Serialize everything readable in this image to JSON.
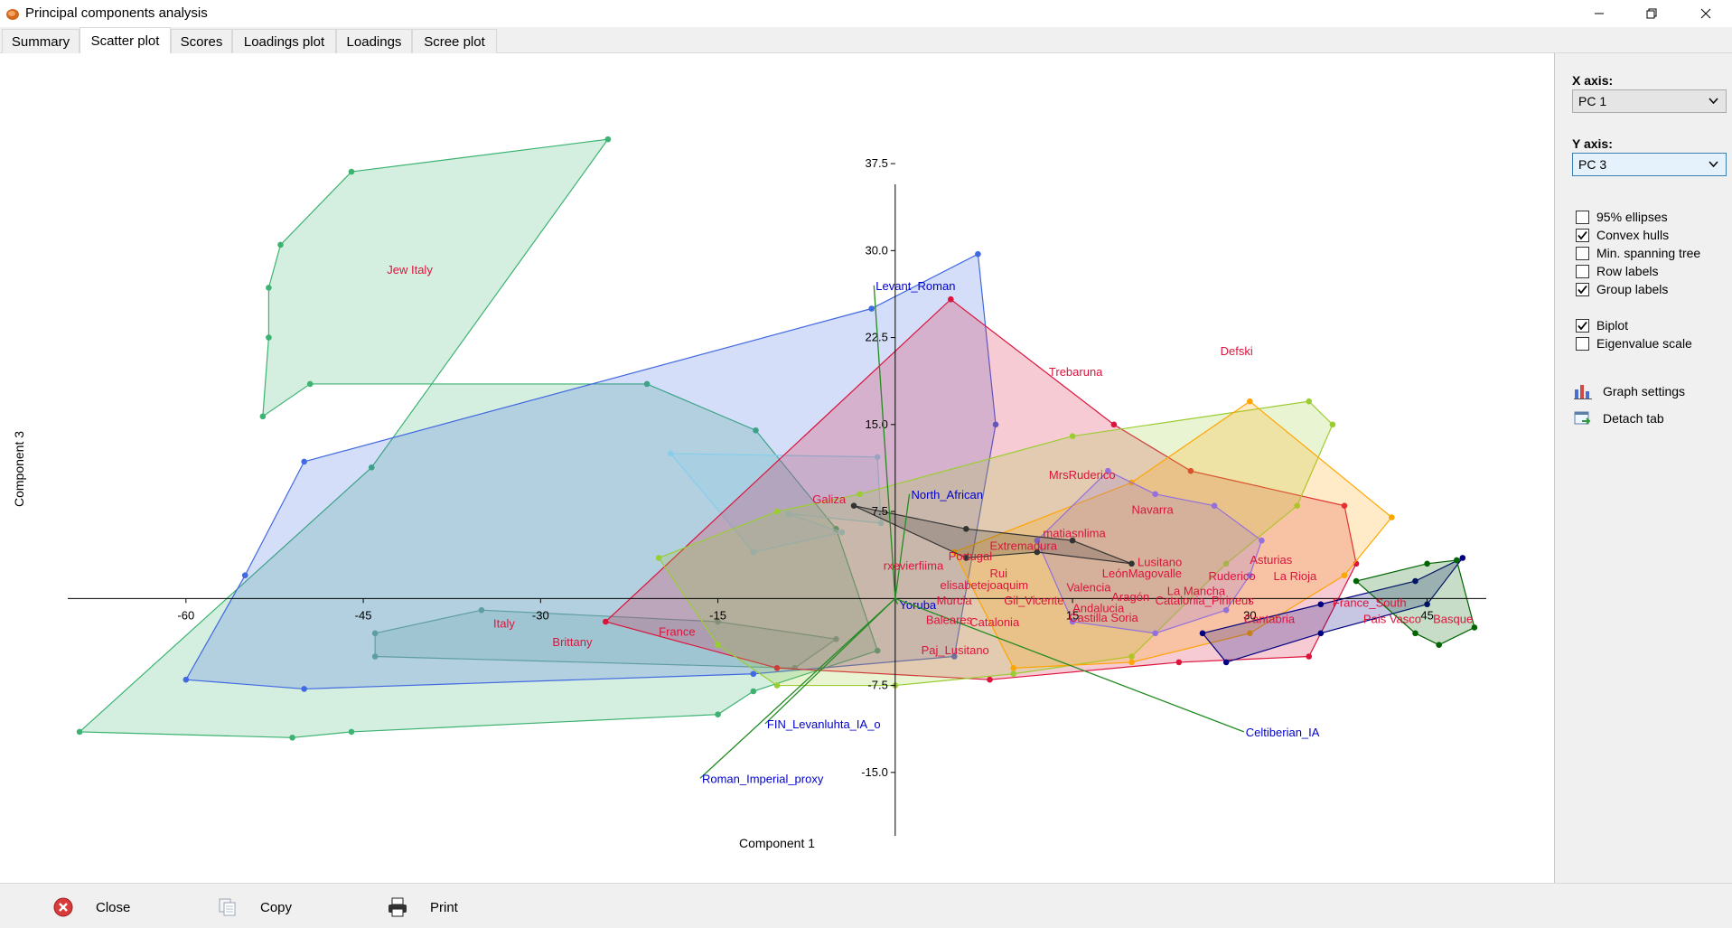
{
  "window": {
    "title": "Principal components analysis",
    "controls": [
      "minimize",
      "maximize",
      "close"
    ]
  },
  "tabs": [
    {
      "label": "Summary",
      "active": false
    },
    {
      "label": "Scatter plot",
      "active": true
    },
    {
      "label": "Scores",
      "active": false
    },
    {
      "label": "Loadings plot",
      "active": false
    },
    {
      "label": "Loadings",
      "active": false
    },
    {
      "label": "Scree plot",
      "active": false
    }
  ],
  "side_panel": {
    "x_axis_label": "X axis:",
    "x_axis_value": "PC 1",
    "y_axis_label": "Y axis:",
    "y_axis_value": "PC 3",
    "checkboxes": [
      {
        "label": "95% ellipses",
        "checked": false
      },
      {
        "label": "Convex hulls",
        "checked": true
      },
      {
        "label": "Min. spanning tree",
        "checked": false
      },
      {
        "label": "Row labels",
        "checked": false
      },
      {
        "label": "Group labels",
        "checked": true
      },
      {
        "label": "Biplot",
        "checked": true
      },
      {
        "label": "Eigenvalue scale",
        "checked": false
      }
    ],
    "actions": [
      {
        "label": "Graph settings",
        "icon": "bar-chart-icon"
      },
      {
        "label": "Detach tab",
        "icon": "detach-window-icon"
      }
    ]
  },
  "bottom_bar": {
    "close_label": "Close",
    "copy_label": "Copy",
    "print_label": "Print"
  },
  "chart_data": {
    "type": "scatter",
    "xlabel": "Component 1",
    "ylabel": "Component 3",
    "xlim": [
      -70,
      50
    ],
    "ylim": [
      -20,
      40
    ],
    "x_ticks": [
      -60,
      -45,
      -30,
      -15,
      15,
      30,
      45
    ],
    "y_ticks": [
      -15.0,
      -7.5,
      7.5,
      15.0,
      22.5,
      30.0,
      37.5
    ],
    "x_tick_labels": [
      "-60",
      "-45",
      "-30",
      "-15",
      "15",
      "30",
      "45"
    ],
    "y_tick_labels": [
      "-15.0",
      "-7.5",
      "7.5",
      "15.0",
      "22.5",
      "30.0",
      "37.5"
    ],
    "hulls": [
      {
        "color": "#3cb371",
        "points": [
          [
            -69,
            -11.5
          ],
          [
            -44.3,
            11.3
          ],
          [
            -24.3,
            39.6
          ],
          [
            -46,
            36.8
          ],
          [
            -52,
            30.5
          ],
          [
            -53,
            26.8
          ],
          [
            -53,
            22.5
          ],
          [
            -53.5,
            15.7
          ],
          [
            -49.5,
            18.5
          ],
          [
            -21,
            18.5
          ],
          [
            -11.8,
            14.5
          ],
          [
            -5,
            6
          ],
          [
            -1.5,
            -4.5
          ],
          [
            -12,
            -8
          ],
          [
            -15,
            -10
          ],
          [
            -46,
            -11.5
          ],
          [
            -51,
            -12
          ]
        ]
      },
      {
        "color": "#4169e1",
        "points": [
          [
            -60,
            -7
          ],
          [
            -50,
            -7.8
          ],
          [
            -12,
            -6.5
          ],
          [
            5,
            -5
          ],
          [
            8.5,
            15
          ],
          [
            7,
            29.7
          ],
          [
            -2,
            25
          ],
          [
            -50,
            11.8
          ],
          [
            -55,
            2
          ]
        ]
      },
      {
        "color": "#5f9ea0",
        "points": [
          [
            -44,
            -3
          ],
          [
            -35,
            -1
          ],
          [
            -15,
            -2
          ],
          [
            -5,
            -3.5
          ],
          [
            -8.5,
            -6
          ],
          [
            -44,
            -5
          ]
        ]
      },
      {
        "color": "#87ceeb",
        "points": [
          [
            -19,
            12.5
          ],
          [
            -1.5,
            12.2
          ],
          [
            -1.2,
            6.5
          ],
          [
            -9,
            7.3
          ],
          [
            -4.5,
            5.7
          ],
          [
            -12,
            4
          ]
        ]
      },
      {
        "color": "#dc143c",
        "points": [
          [
            -24.5,
            -2
          ],
          [
            4.7,
            25.8
          ],
          [
            18.5,
            15
          ],
          [
            25,
            11
          ],
          [
            38,
            8
          ],
          [
            39,
            3
          ],
          [
            35,
            -5
          ],
          [
            24,
            -5.5
          ],
          [
            8,
            -7
          ],
          [
            -10,
            -6
          ]
        ]
      },
      {
        "color": "#9acd32",
        "points": [
          [
            -20,
            3.5
          ],
          [
            -10,
            7.5
          ],
          [
            -3,
            9
          ],
          [
            15,
            14
          ],
          [
            35,
            17
          ],
          [
            37,
            15
          ],
          [
            34,
            8
          ],
          [
            28,
            3
          ],
          [
            20,
            -5
          ],
          [
            10,
            -6.5
          ],
          [
            0,
            -7.5
          ],
          [
            -10,
            -7.5
          ],
          [
            -15,
            -4
          ]
        ]
      },
      {
        "color": "#ffa500",
        "points": [
          [
            5,
            4
          ],
          [
            20,
            10
          ],
          [
            30,
            17
          ],
          [
            42,
            7
          ],
          [
            38,
            2
          ],
          [
            30,
            -3
          ],
          [
            20,
            -5.5
          ],
          [
            10,
            -6
          ]
        ]
      },
      {
        "color": "#9370db",
        "points": [
          [
            12,
            5
          ],
          [
            18,
            11
          ],
          [
            22,
            9
          ],
          [
            27,
            8
          ],
          [
            31,
            5
          ],
          [
            30,
            2
          ],
          [
            28,
            -1
          ],
          [
            22,
            -3
          ],
          [
            15,
            -2
          ]
        ]
      },
      {
        "color": "#000080",
        "points": [
          [
            26,
            -3
          ],
          [
            36,
            -0.5
          ],
          [
            44,
            1.5
          ],
          [
            48,
            3.5
          ],
          [
            45,
            -0.5
          ],
          [
            36,
            -3
          ],
          [
            28,
            -5.5
          ]
        ]
      },
      {
        "color": "#006400",
        "points": [
          [
            39,
            1.5
          ],
          [
            45,
            3
          ],
          [
            47.5,
            3.3
          ],
          [
            49,
            -2.5
          ],
          [
            46,
            -4
          ],
          [
            44,
            -3
          ]
        ]
      },
      {
        "color": "#333333",
        "points": [
          [
            -3.5,
            8
          ],
          [
            6,
            6
          ],
          [
            15,
            5
          ],
          [
            20,
            3
          ],
          [
            12,
            4
          ],
          [
            6,
            3.5
          ]
        ]
      }
    ],
    "group_labels": [
      {
        "text": "Jew Italy",
        "x": -43,
        "y": 28,
        "color": "#dc143c"
      },
      {
        "text": "Italy",
        "x": -34,
        "y": -2.5,
        "color": "#dc143c"
      },
      {
        "text": "Brittany",
        "x": -29,
        "y": -4.1,
        "color": "#dc143c"
      },
      {
        "text": "France",
        "x": -20,
        "y": -3.2,
        "color": "#dc143c"
      },
      {
        "text": "Trebaruna",
        "x": 13,
        "y": 19.2,
        "color": "#dc143c"
      },
      {
        "text": "Defski",
        "x": 27.5,
        "y": 21,
        "color": "#dc143c"
      },
      {
        "text": "MrsRuderico",
        "x": 13,
        "y": 10.3,
        "color": "#dc143c"
      },
      {
        "text": "Galiza",
        "x": -7,
        "y": 8.2,
        "color": "#dc143c"
      },
      {
        "text": "Navarra",
        "x": 20,
        "y": 7.3,
        "color": "#dc143c"
      },
      {
        "text": "matiasnlima",
        "x": 12.5,
        "y": 5.3,
        "color": "#dc143c"
      },
      {
        "text": "Extremadura",
        "x": 8,
        "y": 4.2,
        "color": "#dc143c"
      },
      {
        "text": "Portugal",
        "x": 4.5,
        "y": 3.3,
        "color": "#dc143c"
      },
      {
        "text": "Lusitano",
        "x": 20.5,
        "y": 2.8,
        "color": "#dc143c"
      },
      {
        "text": "Asturias",
        "x": 30,
        "y": 3,
        "color": "#dc143c"
      },
      {
        "text": "rxevierfiima",
        "x": -1,
        "y": 2.5,
        "color": "#dc143c"
      },
      {
        "text": "LeónMagovalle",
        "x": 17.5,
        "y": 1.8,
        "color": "#dc143c"
      },
      {
        "text": "Ruderico",
        "x": 26.5,
        "y": 1.6,
        "color": "#dc143c"
      },
      {
        "text": "La Rioja",
        "x": 32,
        "y": 1.6,
        "color": "#dc143c"
      },
      {
        "text": "Rui",
        "x": 8,
        "y": 1.8,
        "color": "#dc143c"
      },
      {
        "text": "elisabetejoaquim",
        "x": 3.8,
        "y": 0.8,
        "color": "#dc143c"
      },
      {
        "text": "Valencia",
        "x": 14.5,
        "y": 0.6,
        "color": "#dc143c"
      },
      {
        "text": "La Mancha",
        "x": 23,
        "y": 0.3,
        "color": "#dc143c"
      },
      {
        "text": "Aragón",
        "x": 18.3,
        "y": -0.2,
        "color": "#dc143c"
      },
      {
        "text": "Murcia",
        "x": 3.5,
        "y": -0.5,
        "color": "#dc143c"
      },
      {
        "text": "Gil_Vicente",
        "x": 9.2,
        "y": -0.5,
        "color": "#dc143c"
      },
      {
        "text": "Catalonia_Pirineus",
        "x": 22,
        "y": -0.5,
        "color": "#dc143c"
      },
      {
        "text": "Andalucia",
        "x": 15,
        "y": -1.2,
        "color": "#dc143c"
      },
      {
        "text": "France_South",
        "x": 37,
        "y": -0.7,
        "color": "#dc143c"
      },
      {
        "text": "Castilla Soria",
        "x": 14.7,
        "y": -2,
        "color": "#dc143c"
      },
      {
        "text": "Baleares",
        "x": 2.6,
        "y": -2.2,
        "color": "#dc143c"
      },
      {
        "text": "Catalonia",
        "x": 6.3,
        "y": -2.4,
        "color": "#dc143c"
      },
      {
        "text": "Cantabria",
        "x": 29.5,
        "y": -2.1,
        "color": "#dc143c"
      },
      {
        "text": "Pais Vasco",
        "x": 39.6,
        "y": -2.1,
        "color": "#dc143c"
      },
      {
        "text": "Basque",
        "x": 45.5,
        "y": -2.1,
        "color": "#dc143c"
      },
      {
        "text": "Paj_Lusitano",
        "x": 2.2,
        "y": -4.8,
        "color": "#dc143c"
      }
    ],
    "biplot_vectors": [
      {
        "text": "Levant_Roman",
        "x": -1.8,
        "y": 27,
        "color": "#0000cd"
      },
      {
        "text": "North_African",
        "x": 1.2,
        "y": 9,
        "color": "#0000cd"
      },
      {
        "text": "Yoruba",
        "x": 0.2,
        "y": -0.5,
        "color": "#0000cd"
      },
      {
        "text": "FIN_Levanluhta_IA_o",
        "x": -11,
        "y": -10.8,
        "color": "#0000cd"
      },
      {
        "text": "Roman_Imperial_proxy",
        "x": -16.5,
        "y": -15.5,
        "color": "#0000cd"
      },
      {
        "text": "Celtiberian_IA",
        "x": 29.5,
        "y": -11.5,
        "color": "#0000cd"
      }
    ]
  }
}
